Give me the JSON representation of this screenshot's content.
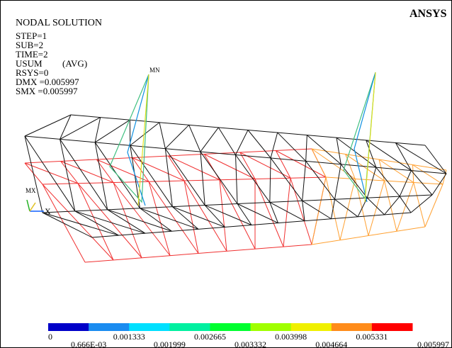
{
  "brand": "ANSYS",
  "header": {
    "title": "NODAL SOLUTION",
    "step": "STEP=1",
    "sub": "SUB=2",
    "time": "TIME=2",
    "usum": "USUM",
    "avg": "(AVG)",
    "rsys": "RSYS=0",
    "dmx": "DMX =0.005997",
    "smx": "SMX =0.005997"
  },
  "markers": {
    "mn": "MN",
    "mx": "MX",
    "axis": "X"
  },
  "legend": {
    "colors": [
      "#0000c8",
      "#1a8cf0",
      "#00e0ff",
      "#00f0a0",
      "#00ff30",
      "#a0ff00",
      "#f0f000",
      "#ff8c1a",
      "#ff0000"
    ],
    "labels": [
      "0",
      "0.666E-03",
      "0.001333",
      "0.001999",
      "0.002665",
      "0.003332",
      "0.003998",
      "0.004664",
      "0.005331",
      "0.005997"
    ]
  }
}
